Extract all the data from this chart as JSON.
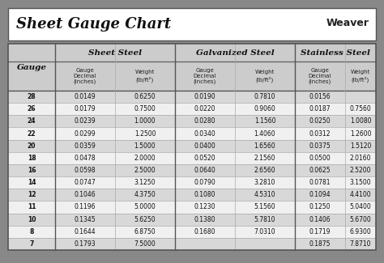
{
  "title": "Sheet Gauge Chart",
  "bg_outer": "#888888",
  "bg_title": "#ffffff",
  "bg_header": "#cccccc",
  "bg_row_odd": "#d8d8d8",
  "bg_row_even": "#f0f0f0",
  "border_color": "#555555",
  "text_dark": "#111111",
  "col_headers": [
    "Sheet Steel",
    "Galvanized Steel",
    "Stainless Steel"
  ],
  "gauges": [
    28,
    26,
    24,
    22,
    20,
    18,
    16,
    14,
    12,
    11,
    10,
    8,
    7
  ],
  "sheet_steel": [
    [
      "0.0149",
      "0.6250"
    ],
    [
      "0.0179",
      "0.7500"
    ],
    [
      "0.0239",
      "1.0000"
    ],
    [
      "0.0299",
      "1.2500"
    ],
    [
      "0.0359",
      "1.5000"
    ],
    [
      "0.0478",
      "2.0000"
    ],
    [
      "0.0598",
      "2.5000"
    ],
    [
      "0.0747",
      "3.1250"
    ],
    [
      "0.1046",
      "4.3750"
    ],
    [
      "0.1196",
      "5.0000"
    ],
    [
      "0.1345",
      "5.6250"
    ],
    [
      "0.1644",
      "6.8750"
    ],
    [
      "0.1793",
      "7.5000"
    ]
  ],
  "galvanized_steel": [
    [
      "0.0190",
      "0.7810"
    ],
    [
      "0.0220",
      "0.9060"
    ],
    [
      "0.0280",
      "1.1560"
    ],
    [
      "0.0340",
      "1.4060"
    ],
    [
      "0.0400",
      "1.6560"
    ],
    [
      "0.0520",
      "2.1560"
    ],
    [
      "0.0640",
      "2.6560"
    ],
    [
      "0.0790",
      "3.2810"
    ],
    [
      "0.1080",
      "4.5310"
    ],
    [
      "0.1230",
      "5.1560"
    ],
    [
      "0.1380",
      "5.7810"
    ],
    [
      "0.1680",
      "7.0310"
    ],
    [
      "",
      ""
    ]
  ],
  "stainless_steel": [
    [
      "0.0156",
      ""
    ],
    [
      "0.0187",
      "0.7560"
    ],
    [
      "0.0250",
      "1.0080"
    ],
    [
      "0.0312",
      "1.2600"
    ],
    [
      "0.0375",
      "1.5120"
    ],
    [
      "0.0500",
      "2.0160"
    ],
    [
      "0.0625",
      "2.5200"
    ],
    [
      "0.0781",
      "3.1500"
    ],
    [
      "0.1094",
      "4.4100"
    ],
    [
      "0.1250",
      "5.0400"
    ],
    [
      "0.1406",
      "5.6700"
    ],
    [
      "0.1719",
      "6.9300"
    ],
    [
      "0.1875",
      "7.8710"
    ]
  ],
  "fig_w": 4.74,
  "fig_h": 3.25,
  "dpi": 100
}
